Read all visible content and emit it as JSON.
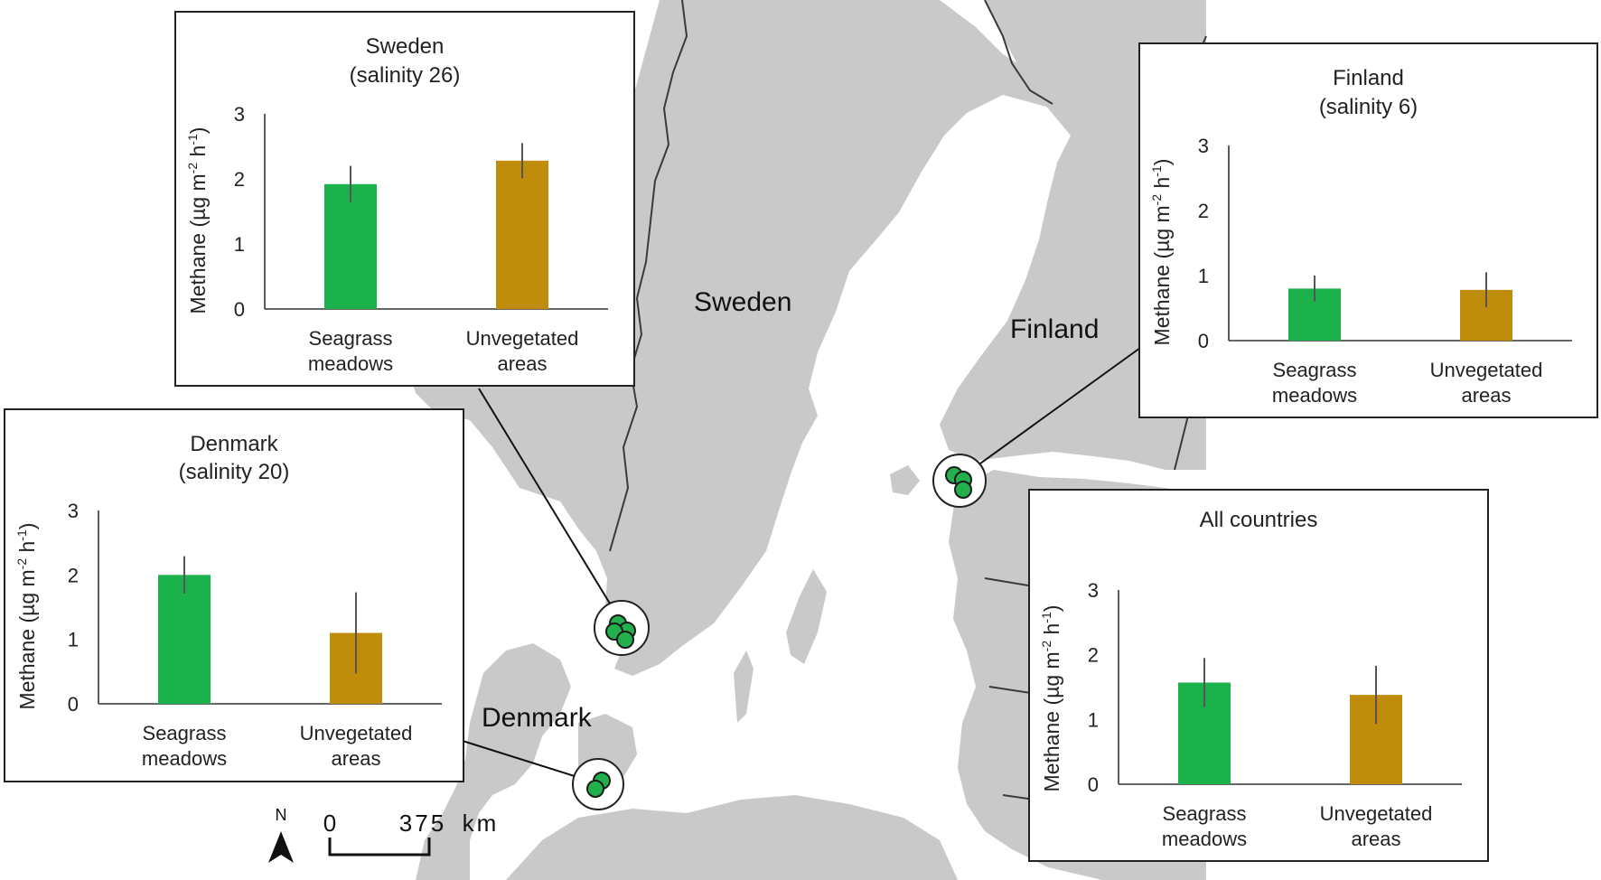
{
  "map": {
    "labels": {
      "sweden": "Sweden",
      "finland": "Finland",
      "denmark": "Denmark"
    },
    "scale": {
      "zero": "0",
      "distance": "375",
      "unit": "km"
    },
    "north": "N",
    "colors": {
      "land": "#c9c9c9",
      "water": "#ffffff",
      "border": "#3a3a3a",
      "site": "#22b04c"
    }
  },
  "chart_data": [
    {
      "id": "sweden",
      "type": "bar",
      "title": "Sweden",
      "subtitle": "(salinity 26)",
      "ylabel_main": "Methane (µg m",
      "ylabel_sup1": "-2",
      "ylabel_mid": " h",
      "ylabel_sup2": "-1",
      "ylabel_end": ")",
      "ylim": [
        0,
        3
      ],
      "yticks": [
        "0",
        "1",
        "2",
        "3"
      ],
      "categories": [
        [
          "Seagrass",
          "meadows"
        ],
        [
          "Unvegetated",
          "areas"
        ]
      ],
      "values": [
        1.92,
        2.28
      ],
      "errors": [
        0.28,
        0.27
      ],
      "colors": [
        "#1cb24b",
        "#bf8d0b"
      ]
    },
    {
      "id": "finland",
      "type": "bar",
      "title": "Finland",
      "subtitle": "(salinity 6)",
      "ylabel_main": "Methane (µg m",
      "ylabel_sup1": "-2",
      "ylabel_mid": " h",
      "ylabel_sup2": "-1",
      "ylabel_end": ")",
      "ylim": [
        0,
        3
      ],
      "yticks": [
        "0",
        "1",
        "2",
        "3"
      ],
      "categories": [
        [
          "Seagrass",
          "meadows"
        ],
        [
          "Unvegetated",
          "areas"
        ]
      ],
      "values": [
        0.8,
        0.78
      ],
      "errors": [
        0.2,
        0.27
      ],
      "colors": [
        "#1cb24b",
        "#bf8d0b"
      ]
    },
    {
      "id": "denmark",
      "type": "bar",
      "title": "Denmark",
      "subtitle": "(salinity 20)",
      "ylabel_main": "Methane (µg m",
      "ylabel_sup1": "-2",
      "ylabel_mid": " h",
      "ylabel_sup2": "-1",
      "ylabel_end": ")",
      "ylim": [
        0,
        3
      ],
      "yticks": [
        "0",
        "1",
        "2",
        "3"
      ],
      "categories": [
        [
          "Seagrass",
          "meadows"
        ],
        [
          "Unvegetated",
          "areas"
        ]
      ],
      "values": [
        2.0,
        1.1
      ],
      "errors": [
        0.29,
        0.63
      ],
      "colors": [
        "#1cb24b",
        "#bf8d0b"
      ]
    },
    {
      "id": "all",
      "type": "bar",
      "title": "All countries",
      "subtitle": "",
      "ylabel_main": "Methane (µg m",
      "ylabel_sup1": "-2",
      "ylabel_mid": " h",
      "ylabel_sup2": "-1",
      "ylabel_end": ")",
      "ylim": [
        0,
        3
      ],
      "yticks": [
        "0",
        "1",
        "2",
        "3"
      ],
      "categories": [
        [
          "Seagrass",
          "meadows"
        ],
        [
          "Unvegetated",
          "areas"
        ]
      ],
      "values": [
        1.57,
        1.38
      ],
      "errors": [
        0.38,
        0.45
      ],
      "colors": [
        "#1cb24b",
        "#bf8d0b"
      ]
    }
  ]
}
